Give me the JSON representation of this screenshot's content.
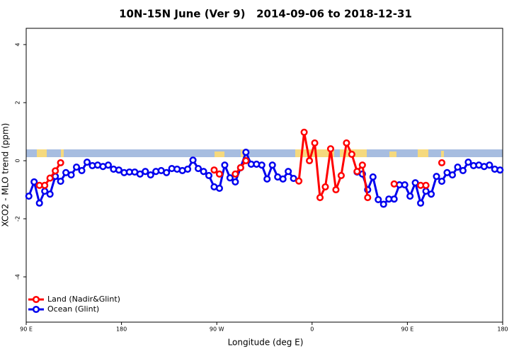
{
  "chart_data": {
    "type": "line",
    "title": "10N-15N June (Ver 9)   2014-09-06 to 2018-12-31",
    "x_label": "Longitude (deg E)",
    "y_label": "XCO2 - MLO trend (ppm)",
    "x": [
      92.5,
      97.5,
      102.5,
      107.5,
      112.5,
      117.5,
      122.5,
      127.5,
      132.5,
      137.5,
      142.5,
      147.5,
      152.5,
      157.5,
      162.5,
      167.5,
      172.5,
      177.5,
      182.5,
      187.5,
      192.5,
      197.5,
      202.5,
      207.5,
      212.5,
      217.5,
      222.5,
      227.5,
      232.5,
      237.5,
      242.5,
      247.5,
      252.5,
      257.5,
      262.5,
      267.5,
      272.5,
      277.5,
      282.5,
      287.5,
      292.5,
      297.5,
      302.5,
      307.5,
      312.5,
      317.5,
      322.5,
      327.5,
      332.5,
      337.5,
      342.5,
      347.5,
      352.5,
      357.5,
      362.5,
      367.5,
      372.5,
      377.5,
      382.5,
      387.5,
      392.5,
      397.5,
      402.5,
      407.5,
      412.5,
      417.5,
      422.5,
      427.5,
      432.5,
      437.5,
      442.5,
      447.5,
      452.5,
      457.5,
      462.5,
      467.5,
      472.5,
      477.5,
      482.5,
      487.5,
      492.5,
      497.5,
      502.5,
      507.5,
      512.5,
      517.5,
      522.5,
      527.5,
      532.5,
      537.5
    ],
    "series": [
      {
        "name": "Ocean (Glint)",
        "color": "#0000ee",
        "values": [
          -1.22,
          -0.73,
          -1.46,
          -1.05,
          -1.15,
          -0.54,
          -0.71,
          -0.41,
          -0.49,
          -0.22,
          -0.34,
          -0.05,
          -0.17,
          -0.15,
          -0.2,
          -0.15,
          -0.29,
          -0.32,
          -0.41,
          -0.39,
          -0.39,
          -0.46,
          -0.37,
          -0.49,
          -0.37,
          -0.34,
          -0.41,
          -0.27,
          -0.29,
          -0.34,
          -0.29,
          0.02,
          -0.27,
          -0.37,
          -0.51,
          -0.9,
          -0.95,
          -0.15,
          -0.59,
          -0.73,
          -0.24,
          0.29,
          -0.12,
          -0.12,
          -0.15,
          -0.63,
          -0.15,
          -0.56,
          -0.63,
          -0.37,
          -0.61,
          null,
          null,
          null,
          null,
          null,
          null,
          null,
          null,
          null,
          null,
          null,
          -0.39,
          -0.46,
          -1.0,
          -0.56,
          -1.34,
          -1.5,
          -1.32,
          -1.32,
          -0.83,
          -0.83,
          -1.22,
          -0.76,
          -1.46,
          -1.05,
          -1.15,
          -0.54,
          -0.71,
          -0.41,
          -0.49,
          -0.22,
          -0.34,
          -0.05,
          -0.17,
          -0.15,
          -0.2,
          -0.15,
          -0.29,
          -0.32
        ]
      },
      {
        "name": "Land (Nadir&Glint)",
        "color": "#ff0000",
        "values": [
          null,
          null,
          -0.85,
          -0.85,
          -0.6,
          -0.35,
          -0.07,
          null,
          null,
          null,
          null,
          null,
          null,
          null,
          null,
          null,
          null,
          null,
          null,
          null,
          null,
          null,
          null,
          null,
          null,
          null,
          null,
          null,
          null,
          null,
          null,
          null,
          null,
          null,
          null,
          -0.32,
          -0.46,
          null,
          null,
          -0.46,
          -0.24,
          0.0,
          null,
          null,
          null,
          null,
          null,
          null,
          null,
          null,
          null,
          -0.7,
          0.98,
          0.0,
          0.61,
          -1.27,
          -0.9,
          0.41,
          -1.0,
          -0.51,
          0.61,
          0.22,
          -0.37,
          -0.15,
          -1.27,
          null,
          null,
          null,
          null,
          -0.8,
          null,
          null,
          null,
          null,
          -0.85,
          -0.85,
          null,
          null,
          -0.07,
          null,
          null,
          null,
          null,
          null,
          null,
          null,
          null,
          null,
          null,
          null
        ]
      }
    ],
    "xlim": [
      90,
      540
    ],
    "ylim": [
      -5.56,
      4.56
    ],
    "xticks": [
      {
        "value": 90,
        "label": "90 E"
      },
      180,
      {
        "value": 270,
        "label": "90 W"
      },
      {
        "value": 360,
        "label": "0"
      },
      {
        "value": 450,
        "label": "90 E"
      },
      {
        "value": 540,
        "label": "180"
      }
    ],
    "yticks": [
      -4,
      -2,
      0,
      2,
      4
    ],
    "legend": "bottom-left"
  }
}
